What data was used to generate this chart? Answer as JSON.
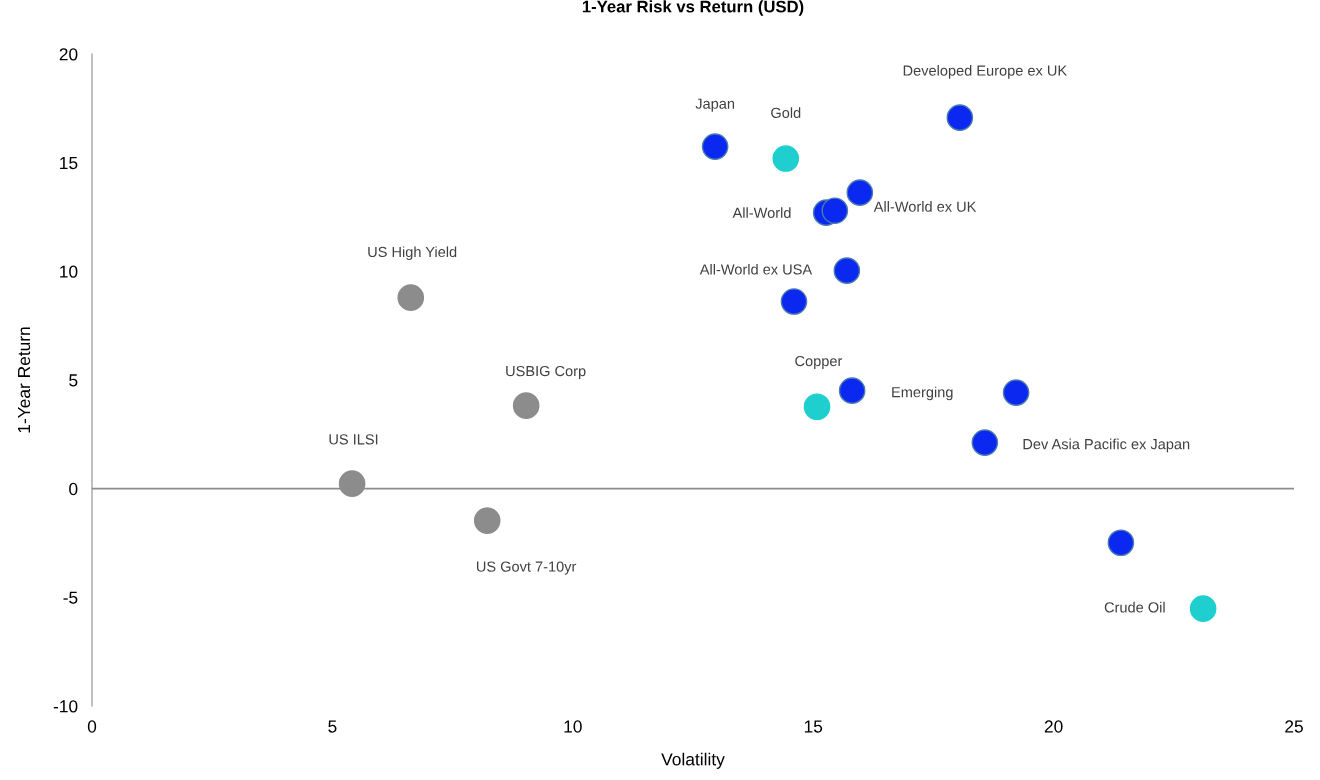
{
  "chart_data": {
    "type": "scatter",
    "title": "1-Year Risk vs Return (USD)",
    "xlabel": "Volatility",
    "ylabel": "1-Year Return",
    "xlim": [
      0,
      25
    ],
    "xticks": [
      0,
      5,
      10,
      15,
      20,
      25
    ],
    "ylim": [
      -10,
      20
    ],
    "yticks": [
      -10,
      -5,
      0,
      5,
      10,
      15,
      20
    ],
    "grid": false,
    "legend": false,
    "marker": "circle",
    "ref_lines": [
      {
        "axis": "y",
        "value": 0,
        "color": "#8c8c8c"
      }
    ],
    "series": [
      {
        "color": "#8c8c8c",
        "x": [
          6.63,
          9.03,
          5.41,
          8.22
        ],
        "values": [
          8.79,
          3.82,
          0.23,
          -1.47
        ]
      },
      {
        "color": "#0a28f0",
        "x": [
          12.96,
          18.05,
          15.97,
          15.27,
          15.45,
          15.7,
          14.6,
          15.81,
          19.22,
          18.57,
          21.4
        ],
        "values": [
          15.74,
          17.07,
          13.62,
          12.7,
          12.79,
          10.03,
          8.61,
          4.51,
          4.42,
          2.12,
          -2.49
        ]
      },
      {
        "color": "#1fcfcf",
        "x": [
          14.43,
          15.08,
          23.11
        ],
        "values": [
          15.19,
          3.77,
          -5.52
        ]
      }
    ],
    "annotations": [
      {
        "text": "Japan",
        "x": 12.96,
        "y": 15.74
      },
      {
        "text": "Gold",
        "x": 14.43,
        "y": 15.19
      },
      {
        "text": "Developed Europe ex UK",
        "x": 18.05,
        "y": 17.07
      },
      {
        "text": "All-World",
        "x": 15.27,
        "y": 12.7
      },
      {
        "text": "All-World ex UK",
        "x": 15.45,
        "y": 12.79
      },
      {
        "text": "All-World ex USA",
        "x": 15.7,
        "y": 10.03
      },
      {
        "text": "US High Yield",
        "x": 6.63,
        "y": 8.79
      },
      {
        "text": "USBIG Corp",
        "x": 9.03,
        "y": 3.82
      },
      {
        "text": "US ILSI",
        "x": 5.41,
        "y": 0.23
      },
      {
        "text": "US Govt 7-10yr",
        "x": 8.22,
        "y": -1.47
      },
      {
        "text": "Copper",
        "x": 15.08,
        "y": 3.77
      },
      {
        "text": "Emerging",
        "x": 15.81,
        "y": 4.51
      },
      {
        "text": "Dev Asia Pacific ex Japan",
        "x": 18.57,
        "y": 2.12
      },
      {
        "text": "Crude Oil",
        "x": 23.11,
        "y": -5.52
      }
    ]
  }
}
